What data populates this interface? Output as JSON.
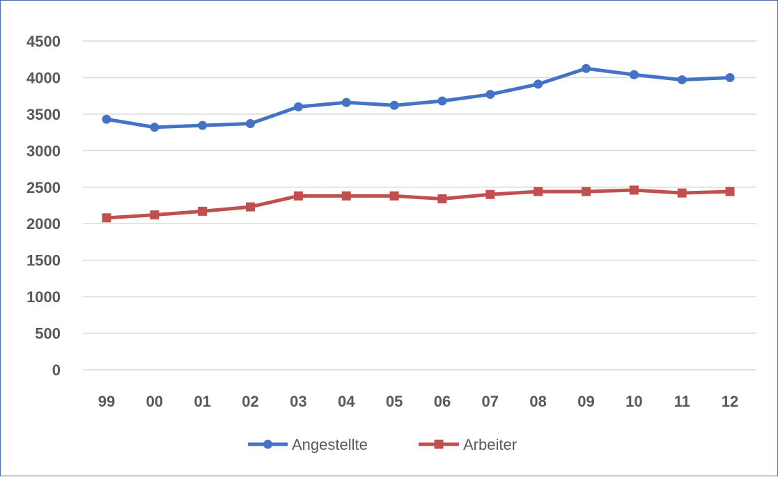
{
  "chart_data": {
    "type": "line",
    "categories": [
      "99",
      "00",
      "01",
      "02",
      "03",
      "04",
      "05",
      "06",
      "07",
      "08",
      "09",
      "10",
      "11",
      "12"
    ],
    "series": [
      {
        "name": "Angestellte",
        "color": "#4472c4",
        "marker": "circle",
        "values": [
          3430,
          3320,
          3345,
          3370,
          3600,
          3660,
          3620,
          3680,
          3770,
          3910,
          4125,
          4040,
          3970,
          4000
        ]
      },
      {
        "name": "Arbeiter",
        "color": "#c0504d",
        "marker": "square",
        "values": [
          2080,
          2120,
          2170,
          2230,
          2380,
          2380,
          2380,
          2340,
          2400,
          2440,
          2440,
          2460,
          2420,
          2440
        ]
      }
    ],
    "ylim": [
      0,
      4500
    ],
    "yticks": [
      "0",
      "500",
      "1000",
      "1500",
      "2000",
      "2500",
      "3000",
      "3500",
      "4000",
      "4500"
    ],
    "grid": true,
    "legend_position": "bottom"
  }
}
